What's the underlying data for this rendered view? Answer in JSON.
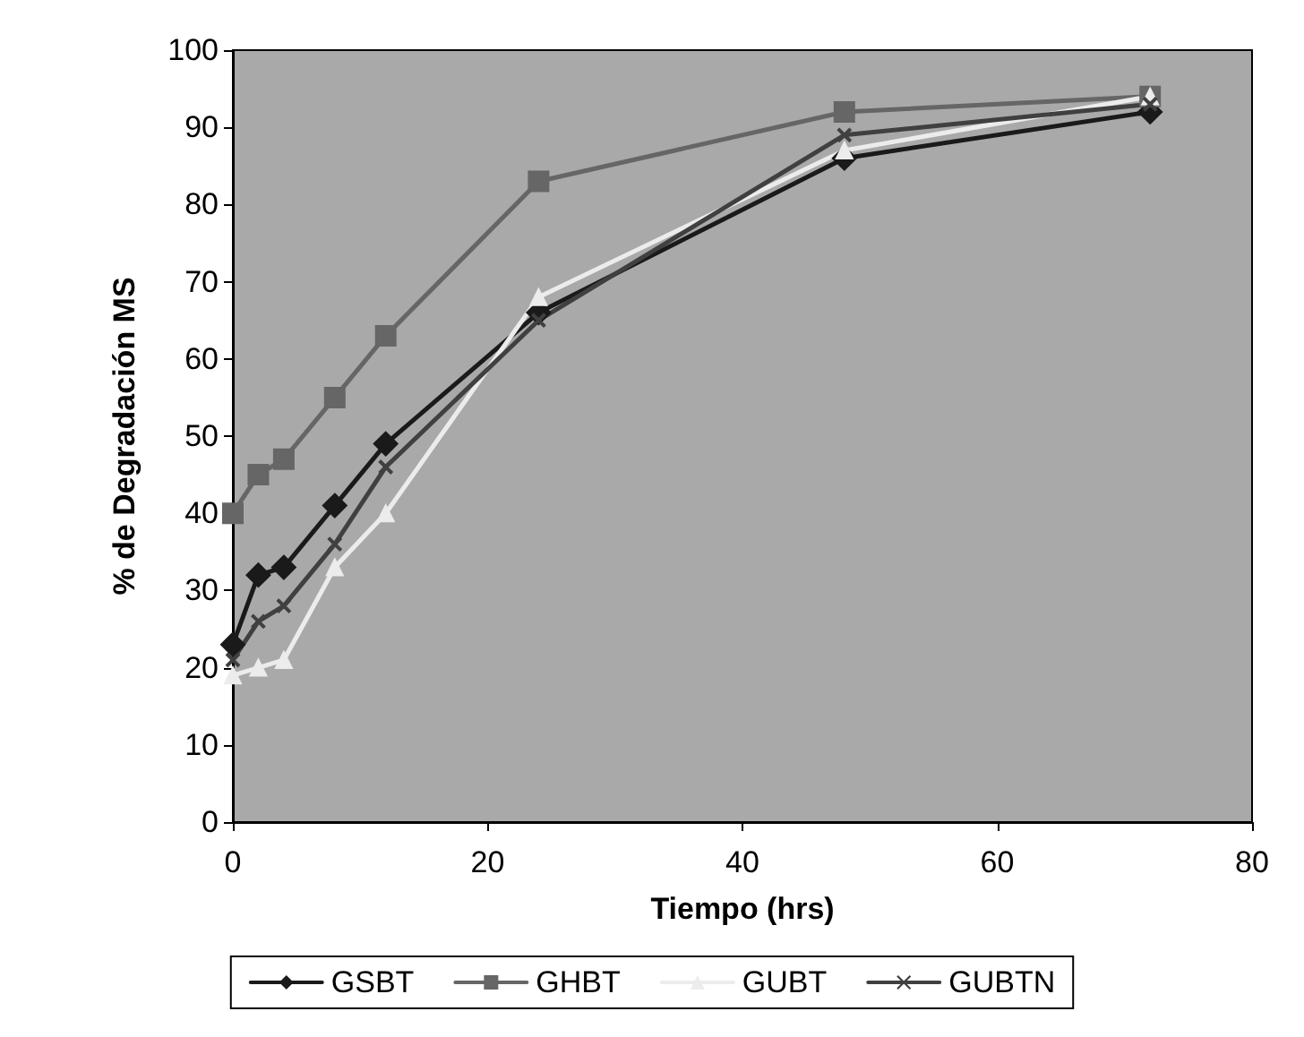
{
  "chart_data": {
    "type": "line",
    "xlabel": "Tiempo (hrs)",
    "ylabel": "% de Degradación MS",
    "x": [
      0,
      2,
      4,
      8,
      12,
      24,
      48,
      72
    ],
    "series": [
      {
        "name": "GSBT",
        "color": "#1a1a1a",
        "marker": "diamond",
        "values": [
          23,
          32,
          33,
          41,
          49,
          66,
          86,
          92
        ]
      },
      {
        "name": "GHBT",
        "color": "#666666",
        "marker": "square",
        "values": [
          40,
          45,
          47,
          55,
          63,
          83,
          92,
          94
        ]
      },
      {
        "name": "GUBT",
        "color": "#ececec",
        "marker": "triangle",
        "values": [
          19,
          20,
          21,
          33,
          40,
          68,
          87,
          94
        ]
      },
      {
        "name": "GUBTN",
        "color": "#404040",
        "marker": "cross",
        "values": [
          21,
          26,
          28,
          36,
          46,
          65,
          89,
          93
        ]
      }
    ],
    "xlim": [
      0,
      80
    ],
    "xticks": [
      0,
      20,
      40,
      60,
      80
    ],
    "ylim": [
      0,
      100
    ],
    "yticks": [
      0,
      10,
      20,
      30,
      40,
      50,
      60,
      70,
      80,
      90,
      100
    ],
    "grid": false,
    "legend": "bottom",
    "line_style": "solid"
  }
}
